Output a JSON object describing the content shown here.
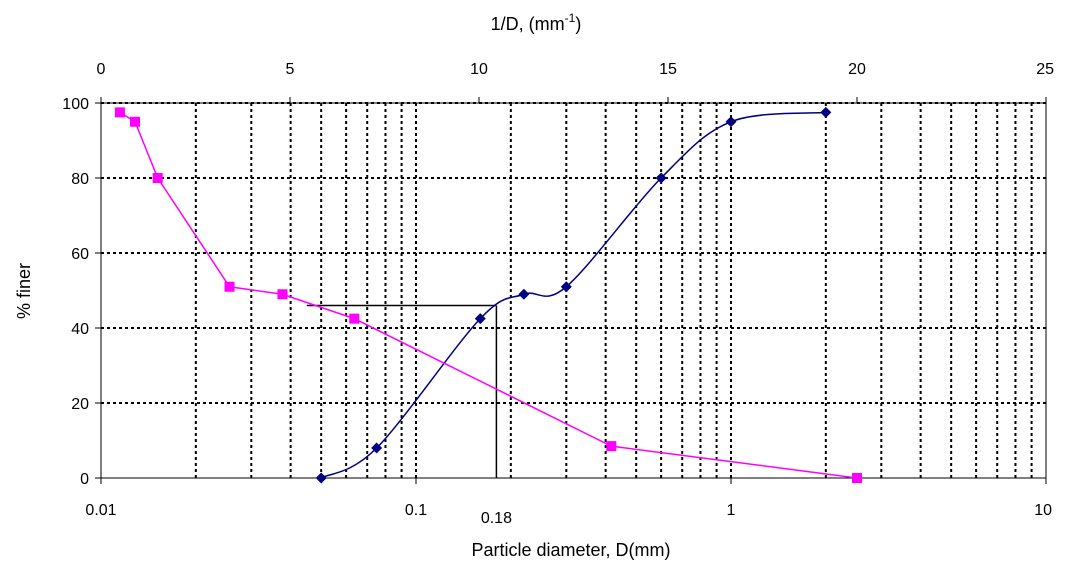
{
  "chart_data": {
    "type": "scatter",
    "title": "",
    "xlabel": "Particle diameter, D(mm)",
    "ylabel": "% finer",
    "x2label": {
      "main": "1/D, (mm",
      "sup": "-1",
      "close": ")"
    },
    "x_scale": "log",
    "xlim": [
      0.01,
      10
    ],
    "ylim": [
      0,
      100
    ],
    "x2lim": [
      0,
      25
    ],
    "grid": true,
    "legend": "none",
    "x_ticks": [
      "0.01",
      "0.1",
      "1",
      "10"
    ],
    "x2_ticks": [
      "0",
      "5",
      "10",
      "15",
      "20",
      "25"
    ],
    "y_ticks": [
      "0",
      "20",
      "40",
      "60",
      "80",
      "100"
    ],
    "series": [
      {
        "axis": "bottom",
        "color": "#000080",
        "marker": "diamond",
        "line": "smooth",
        "x": [
          0.05,
          0.075,
          0.16,
          0.22,
          0.3,
          0.6,
          1.0,
          2.0
        ],
        "y": [
          0,
          8,
          42.5,
          49,
          51,
          80,
          95,
          97.5
        ]
      },
      {
        "axis": "top",
        "color": "#ff00ff",
        "marker": "square",
        "line": "straight",
        "x": [
          0.5,
          0.9,
          1.5,
          3.4,
          4.8,
          6.7,
          13.5,
          20.0
        ],
        "y": [
          97.5,
          95,
          80,
          51,
          49,
          42.5,
          8.5,
          0
        ]
      }
    ],
    "annotation": {
      "label": "0.18",
      "x": 0.18,
      "y": 46,
      "x_from": 0.045
    }
  }
}
